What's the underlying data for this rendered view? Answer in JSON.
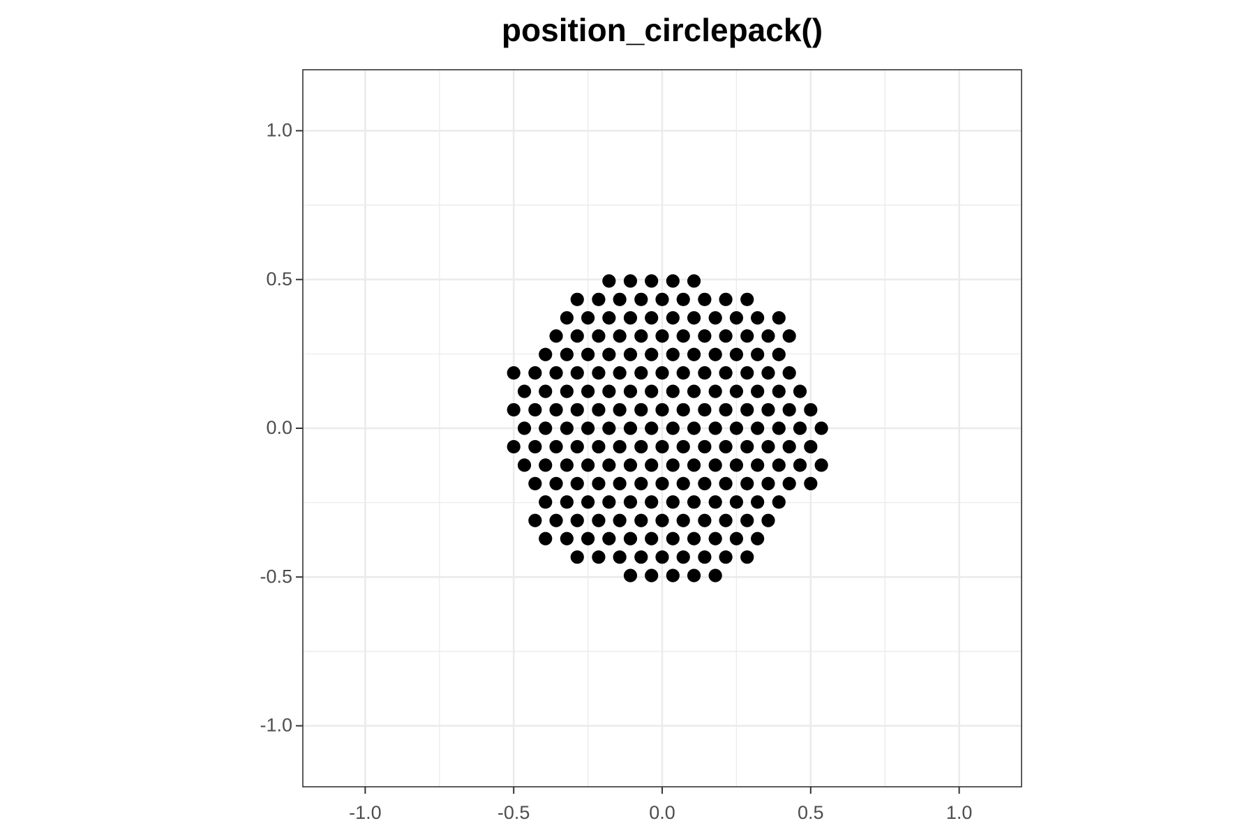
{
  "chart_data": {
    "type": "scatter",
    "title": "position_circlepack()",
    "color": "#000000",
    "xlim": [
      -1.21,
      1.21
    ],
    "ylim": [
      -1.205,
      1.205
    ],
    "xticks": [
      {
        "value": -1,
        "label": "-1.0"
      },
      -0.5,
      {
        "value": 0,
        "label": "0.0"
      },
      0.5,
      {
        "value": 1,
        "label": "1.0"
      }
    ],
    "yticks": [
      {
        "value": -1,
        "label": "-1.0"
      },
      -0.5,
      {
        "value": 0,
        "label": "0.0"
      },
      0.5,
      {
        "value": 1,
        "label": "1.0"
      }
    ],
    "minor_gridlines": [
      -0.75,
      -0.25,
      0.25,
      0.75
    ],
    "grid": true,
    "x": [
      -0.179,
      -0.107,
      -0.036,
      0.036,
      0.107,
      -0.286,
      -0.214,
      -0.143,
      -0.071,
      0,
      0.071,
      0.143,
      0.214,
      0.286,
      -0.321,
      -0.25,
      -0.179,
      -0.107,
      -0.036,
      0.036,
      0.107,
      0.179,
      0.25,
      0.321,
      0.393,
      -0.357,
      -0.286,
      -0.214,
      -0.143,
      -0.071,
      0,
      0.071,
      0.143,
      0.214,
      0.286,
      0.357,
      0.428,
      -0.393,
      -0.321,
      -0.25,
      -0.179,
      -0.107,
      -0.036,
      0.036,
      0.107,
      0.179,
      0.25,
      0.321,
      0.393,
      -0.5,
      -0.428,
      -0.357,
      -0.286,
      -0.214,
      -0.143,
      -0.071,
      0,
      0.071,
      0.143,
      0.214,
      0.286,
      0.357,
      0.428,
      -0.464,
      -0.393,
      -0.321,
      -0.25,
      -0.179,
      -0.107,
      -0.036,
      0.036,
      0.107,
      0.179,
      0.25,
      0.321,
      0.393,
      0.464,
      -0.5,
      -0.428,
      -0.357,
      -0.286,
      -0.214,
      -0.143,
      -0.071,
      0,
      0.071,
      0.143,
      0.214,
      0.286,
      0.357,
      0.428,
      0.5,
      -0.464,
      -0.393,
      -0.321,
      -0.25,
      -0.179,
      -0.107,
      -0.036,
      0.036,
      0.107,
      0.179,
      0.25,
      0.321,
      0.393,
      0.464,
      0.536,
      -0.5,
      -0.428,
      -0.357,
      -0.286,
      -0.214,
      -0.143,
      -0.071,
      0,
      0.071,
      0.143,
      0.214,
      0.286,
      0.357,
      0.428,
      0.5,
      -0.464,
      -0.393,
      -0.321,
      -0.25,
      -0.179,
      -0.107,
      -0.036,
      0.036,
      0.107,
      0.179,
      0.25,
      0.321,
      0.393,
      0.464,
      0.536,
      -0.428,
      -0.357,
      -0.286,
      -0.214,
      -0.143,
      -0.071,
      0,
      0.071,
      0.143,
      0.214,
      0.286,
      0.357,
      0.428,
      0.5,
      -0.393,
      -0.321,
      -0.25,
      -0.179,
      -0.107,
      -0.036,
      0.036,
      0.107,
      0.179,
      0.25,
      0.321,
      0.393,
      -0.428,
      -0.357,
      -0.286,
      -0.214,
      -0.143,
      -0.071,
      0,
      0.071,
      0.143,
      0.214,
      0.286,
      0.357,
      -0.393,
      -0.321,
      -0.25,
      -0.179,
      -0.107,
      -0.036,
      0.036,
      0.107,
      0.179,
      0.25,
      0.321,
      -0.286,
      -0.214,
      -0.143,
      -0.071,
      0,
      0.071,
      0.143,
      0.214,
      0.286,
      -0.107,
      -0.036,
      0.036,
      0.107,
      0.179
    ],
    "values": [
      0.495,
      0.495,
      0.495,
      0.495,
      0.495,
      0.433,
      0.433,
      0.433,
      0.433,
      0.433,
      0.433,
      0.433,
      0.433,
      0.433,
      0.371,
      0.371,
      0.371,
      0.371,
      0.371,
      0.371,
      0.371,
      0.371,
      0.371,
      0.371,
      0.371,
      0.31,
      0.31,
      0.31,
      0.31,
      0.31,
      0.31,
      0.31,
      0.31,
      0.31,
      0.31,
      0.31,
      0.31,
      0.248,
      0.248,
      0.248,
      0.248,
      0.248,
      0.248,
      0.248,
      0.248,
      0.248,
      0.248,
      0.248,
      0.248,
      0.186,
      0.186,
      0.186,
      0.186,
      0.186,
      0.186,
      0.186,
      0.186,
      0.186,
      0.186,
      0.186,
      0.186,
      0.186,
      0.186,
      0.124,
      0.124,
      0.124,
      0.124,
      0.124,
      0.124,
      0.124,
      0.124,
      0.124,
      0.124,
      0.124,
      0.124,
      0.124,
      0.124,
      0.062,
      0.062,
      0.062,
      0.062,
      0.062,
      0.062,
      0.062,
      0.062,
      0.062,
      0.062,
      0.062,
      0.062,
      0.062,
      0.062,
      0.062,
      0,
      0,
      0,
      0,
      0,
      0,
      0,
      0,
      0,
      0,
      0,
      0,
      0,
      0,
      0,
      -0.062,
      -0.062,
      -0.062,
      -0.062,
      -0.062,
      -0.062,
      -0.062,
      -0.062,
      -0.062,
      -0.062,
      -0.062,
      -0.062,
      -0.062,
      -0.062,
      -0.062,
      -0.124,
      -0.124,
      -0.124,
      -0.124,
      -0.124,
      -0.124,
      -0.124,
      -0.124,
      -0.124,
      -0.124,
      -0.124,
      -0.124,
      -0.124,
      -0.124,
      -0.124,
      -0.186,
      -0.186,
      -0.186,
      -0.186,
      -0.186,
      -0.186,
      -0.186,
      -0.186,
      -0.186,
      -0.186,
      -0.186,
      -0.186,
      -0.186,
      -0.186,
      -0.248,
      -0.248,
      -0.248,
      -0.248,
      -0.248,
      -0.248,
      -0.248,
      -0.248,
      -0.248,
      -0.248,
      -0.248,
      -0.248,
      -0.31,
      -0.31,
      -0.31,
      -0.31,
      -0.31,
      -0.31,
      -0.31,
      -0.31,
      -0.31,
      -0.31,
      -0.31,
      -0.31,
      -0.371,
      -0.371,
      -0.371,
      -0.371,
      -0.371,
      -0.371,
      -0.371,
      -0.371,
      -0.371,
      -0.371,
      -0.371,
      -0.433,
      -0.433,
      -0.433,
      -0.433,
      -0.433,
      -0.433,
      -0.433,
      -0.433,
      -0.433,
      -0.495,
      -0.495,
      -0.495,
      -0.495,
      -0.495
    ]
  }
}
